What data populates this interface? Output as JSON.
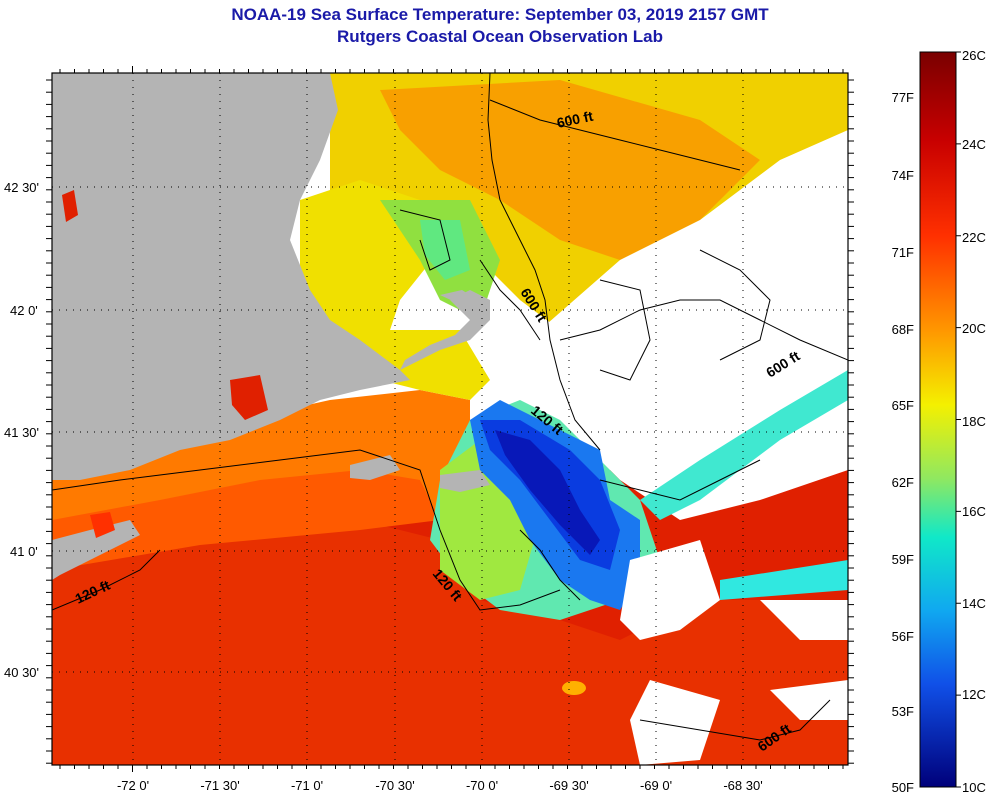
{
  "title": {
    "line1": "NOAA-19 Sea Surface Temperature:  September 03, 2019 2157 GMT",
    "line2": "Rutgers Coastal Ocean Observation Lab"
  },
  "map": {
    "lat_labels": [
      "42 30'",
      "42 0'",
      "41 30'",
      "41 0'",
      "40 30'"
    ],
    "lon_labels": [
      "-72 0'",
      "-71 30'",
      "-71 0'",
      "-70 30'",
      "-70 0'",
      "-69 30'",
      "-69 0'",
      "-68 30'"
    ],
    "contour_labels": [
      "600 ft",
      "600 ft",
      "600 ft",
      "120 ft",
      "120 ft",
      "120 ft",
      "600 ft"
    ],
    "colors": {
      "land": "#b4b4b4",
      "cloud": "#ffffff",
      "warm": "#d62000",
      "cold": "#0a28c8"
    }
  },
  "colorbar": {
    "celsius_labels": [
      "26C",
      "24C",
      "22C",
      "20C",
      "18C",
      "16C",
      "14C",
      "12C",
      "10C"
    ],
    "fahrenheit_labels": [
      "77F",
      "74F",
      "71F",
      "68F",
      "65F",
      "62F",
      "59F",
      "56F",
      "53F",
      "50F"
    ]
  }
}
